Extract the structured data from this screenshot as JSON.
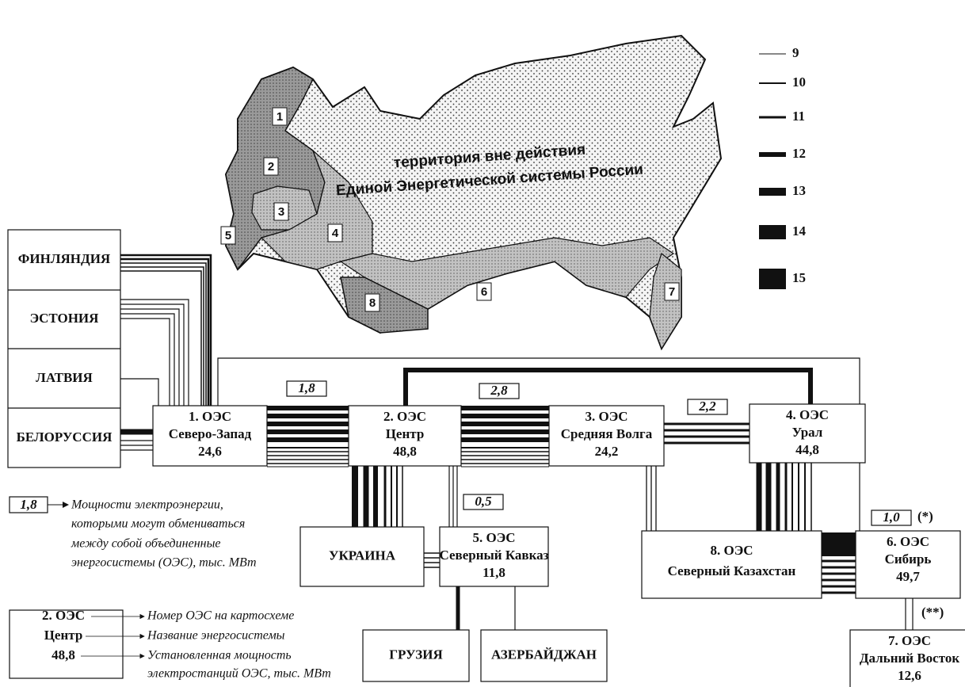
{
  "map": {
    "regions": [
      "1",
      "2",
      "3",
      "4",
      "5",
      "6",
      "7",
      "8"
    ],
    "caption": [
      "территория вне действия",
      "Единой Энергетической системы России"
    ]
  },
  "legend": [
    "9",
    "10",
    "11",
    "12",
    "13",
    "14",
    "15"
  ],
  "countries": [
    "ФИНЛЯНДИЯ",
    "ЭСТОНИЯ",
    "ЛАТВИЯ",
    "БЕЛОРУССИЯ",
    "УКРАИНА",
    "ГРУЗИЯ",
    "АЗЕРБАЙДЖАН"
  ],
  "systems": [
    {
      "number": "1. ОЭС",
      "name": "Северо-Запад",
      "capacity": "24,6"
    },
    {
      "number": "2. ОЭС",
      "name": "Центр",
      "capacity": "48,8"
    },
    {
      "number": "3. ОЭС",
      "name": "Средняя Волга",
      "capacity": "24,2"
    },
    {
      "number": "4. ОЭС",
      "name": "Урал",
      "capacity": "44,8"
    },
    {
      "number": "5. ОЭС",
      "name": "Северный Кавказ",
      "capacity": "11,8"
    },
    {
      "number": "6. ОЭС",
      "name": "Сибирь",
      "capacity": "49,7"
    },
    {
      "number": "7. ОЭС",
      "name": "Дальний Восток",
      "capacity": "12,6"
    },
    {
      "number": "8. ОЭС",
      "name": "Северный Казахстан"
    }
  ],
  "exchanges": [
    "1,8",
    "2,8",
    "2,2",
    "0,5",
    "1,0"
  ],
  "notes": [
    "(*)",
    "(**)"
  ],
  "key": {
    "exchange": {
      "sample": "1,8",
      "text": [
        "Мощности электроэнергии,",
        "которыми могут обмениваться",
        "между собой объединенные",
        "энергосистемы (ОЭС), тыс. МВт"
      ]
    },
    "system": {
      "sample": [
        "2. ОЭС",
        "Центр",
        "48,8"
      ],
      "text": [
        "Номер ОЭС на картосхеме",
        "Название энергосистемы",
        "Установленная мощность",
        "электростанций ОЭС, тыс. МВт"
      ]
    }
  }
}
